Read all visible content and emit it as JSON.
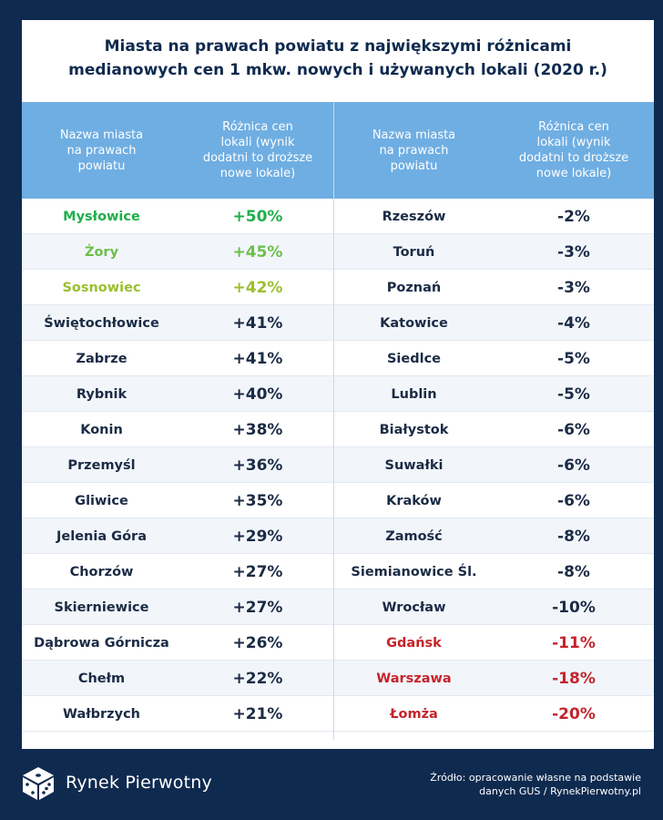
{
  "title_lines": [
    "Miasta na prawach powiatu z największymi różnicami",
    "medianowych cen 1 mkw. nowych i używanych lokali (2020 r.)"
  ],
  "header": {
    "city_label_lines": [
      "Nazwa miasta",
      "na prawach",
      "powiatu"
    ],
    "diff_label_lines": [
      "Różnica cen",
      "lokali (wynik",
      "dodatni to droższe",
      "nowe lokale)"
    ]
  },
  "colors": {
    "default": "#1b2b45",
    "green_dark": "#1fae4b",
    "green_light": "#6cc04a",
    "olive": "#9dbe2f",
    "red": "#c4242b"
  },
  "chart_data": {
    "type": "table",
    "columns": [
      "Nazwa miasta na prawach powiatu",
      "Różnica cen lokali (wynik dodatni to droższe nowe lokale)"
    ],
    "left": [
      {
        "city": "Mysłowice",
        "value": "+50%",
        "color": "green_dark"
      },
      {
        "city": "Żory",
        "value": "+45%",
        "color": "green_light"
      },
      {
        "city": "Sosnowiec",
        "value": "+42%",
        "color": "olive"
      },
      {
        "city": "Świętochłowice",
        "value": "+41%"
      },
      {
        "city": "Zabrze",
        "value": "+41%"
      },
      {
        "city": "Rybnik",
        "value": "+40%"
      },
      {
        "city": "Konin",
        "value": "+38%"
      },
      {
        "city": "Przemyśl",
        "value": "+36%"
      },
      {
        "city": "Gliwice",
        "value": "+35%"
      },
      {
        "city": "Jelenia Góra",
        "value": "+29%"
      },
      {
        "city": "Chorzów",
        "value": "+27%"
      },
      {
        "city": "Skierniewice",
        "value": "+27%"
      },
      {
        "city": "Dąbrowa Górnicza",
        "value": "+26%"
      },
      {
        "city": "Chełm",
        "value": "+22%"
      },
      {
        "city": "Wałbrzych",
        "value": "+21%"
      }
    ],
    "right": [
      {
        "city": "Rzeszów",
        "value": "-2%"
      },
      {
        "city": "Toruń",
        "value": "-3%"
      },
      {
        "city": "Poznań",
        "value": "-3%"
      },
      {
        "city": "Katowice",
        "value": "-4%"
      },
      {
        "city": "Siedlce",
        "value": "-5%"
      },
      {
        "city": "Lublin",
        "value": "-5%"
      },
      {
        "city": "Białystok",
        "value": "-6%"
      },
      {
        "city": "Suwałki",
        "value": "-6%"
      },
      {
        "city": "Kraków",
        "value": "-6%"
      },
      {
        "city": "Zamość",
        "value": "-8%"
      },
      {
        "city": "Siemianowice Śl.",
        "value": "-8%"
      },
      {
        "city": "Wrocław",
        "value": "-10%"
      },
      {
        "city": "Gdańsk",
        "value": "-11%",
        "color": "red"
      },
      {
        "city": "Warszawa",
        "value": "-18%",
        "color": "red"
      },
      {
        "city": "Łomża",
        "value": "-20%",
        "color": "red"
      }
    ]
  },
  "footer": {
    "brand": "Rynek Pierwotny",
    "source_lines": [
      "Źródło: opracowanie własne na podstawie",
      "danych GUS / RynekPierwotny.pl"
    ]
  }
}
